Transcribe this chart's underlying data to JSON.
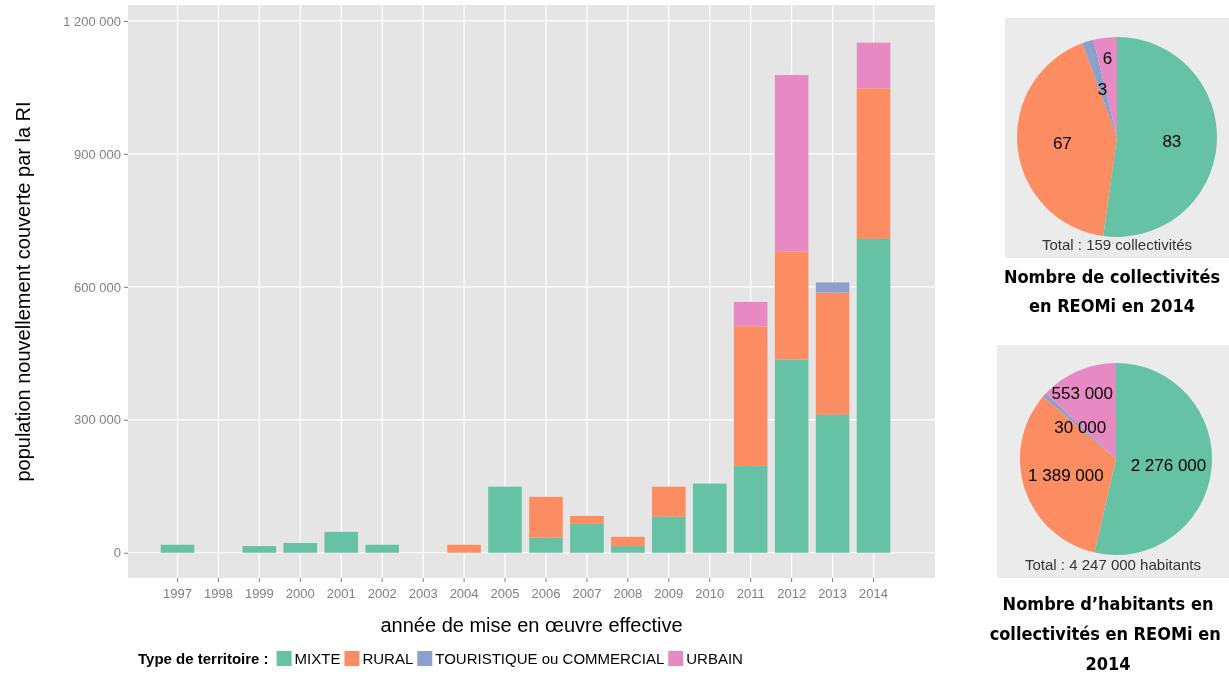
{
  "chart_data": [
    {
      "type": "bar",
      "stacked": true,
      "xlabel": "année de mise en œuvre effective",
      "ylabel": "population nouvellement couverte par la RI",
      "legend_title": "Type de territoire :",
      "legend": "bottom",
      "grid": true,
      "categories": [
        "1997",
        "1998",
        "1999",
        "2000",
        "2001",
        "2002",
        "2003",
        "2004",
        "2005",
        "2006",
        "2007",
        "2008",
        "2009",
        "2010",
        "2011",
        "2012",
        "2013",
        "2014"
      ],
      "ylim": [
        -57000,
        1236000
      ],
      "yticks": [
        0,
        {
          "value": 300000,
          "label": "300 000"
        },
        {
          "value": 600000,
          "label": "600 000"
        },
        {
          "value": 900000,
          "label": "900 000"
        },
        {
          "value": 1200000,
          "label": "1 200 000"
        }
      ],
      "series": [
        {
          "name": "MIXTE",
          "color": "#66c2a5",
          "values": [
            18000,
            null,
            15000,
            22000,
            47000,
            18000,
            null,
            null,
            149000,
            34000,
            65000,
            15000,
            81000,
            156000,
            196000,
            436000,
            311000,
            708000
          ]
        },
        {
          "name": "RURAL",
          "color": "#fc8d62",
          "values": [
            null,
            null,
            null,
            null,
            null,
            null,
            null,
            18000,
            null,
            92000,
            18000,
            21000,
            68000,
            null,
            315000,
            244000,
            276000,
            340000
          ]
        },
        {
          "name": "TOURISTIQUE ou COMMERCIAL",
          "color": "#8da0cb",
          "values": [
            null,
            null,
            null,
            null,
            null,
            null,
            null,
            null,
            null,
            null,
            null,
            null,
            null,
            null,
            null,
            null,
            23000,
            null
          ]
        },
        {
          "name": "URBAIN",
          "color": "#e78ac3",
          "values": [
            null,
            null,
            null,
            null,
            null,
            null,
            null,
            null,
            null,
            null,
            null,
            null,
            null,
            null,
            55000,
            398000,
            null,
            103000
          ]
        }
      ]
    },
    {
      "type": "pie",
      "title": "Nombre de collectivités en REOMi en 2014",
      "annotations": [
        "Total : 159 collectivités"
      ],
      "data_labels": true,
      "categories": [
        null,
        null,
        null,
        null
      ],
      "values": [
        83,
        67,
        3,
        6
      ],
      "colors": [
        "#66c2a5",
        "#fc8d62",
        "#8da0cb",
        "#e78ac3"
      ]
    },
    {
      "type": "pie",
      "title": "Nombre d’habitants en collectivités en REOMi en  2014",
      "annotations": [
        "Total : 4 247 000 habitants"
      ],
      "categories": [
        null,
        null,
        null,
        null
      ],
      "values": [
        2276000,
        1389000,
        30000,
        553000
      ],
      "value_labels": [
        "2 276 000",
        "1 389 000",
        "30 000",
        "553 000"
      ],
      "colors": [
        "#66c2a5",
        "#fc8d62",
        "#8da0cb",
        "#e78ac3"
      ]
    }
  ]
}
